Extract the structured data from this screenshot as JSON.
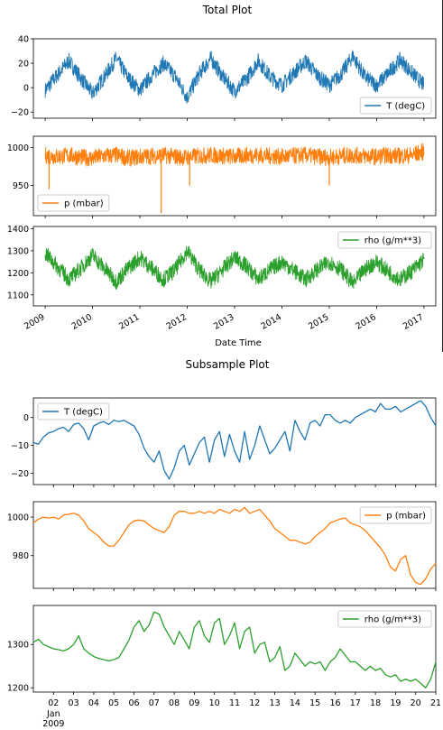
{
  "figures": {
    "total_title": "Total Plot",
    "subsample_title": "Subsample Plot",
    "colors": {
      "T": "#1f77b4",
      "p": "#ff7f0e",
      "rho": "#2ca02c"
    }
  },
  "chart_data": [
    {
      "type": "line",
      "figure": "Total Plot",
      "xlabel": "Date Time",
      "x_ticks": [
        "2009",
        "2010",
        "2011",
        "2012",
        "2013",
        "2014",
        "2015",
        "2016",
        "2017"
      ],
      "series": [
        {
          "name": "T (degC)",
          "legend_loc": "bottom-right",
          "ylim": [
            -25,
            40
          ],
          "yticks": [
            -20,
            0,
            20,
            40
          ],
          "x": [
            2009.0,
            2009.25,
            2009.5,
            2009.75,
            2010.0,
            2010.25,
            2010.5,
            2010.75,
            2011.0,
            2011.25,
            2011.5,
            2011.75,
            2012.0,
            2012.25,
            2012.5,
            2012.75,
            2013.0,
            2013.25,
            2013.5,
            2013.75,
            2014.0,
            2014.25,
            2014.5,
            2014.75,
            2015.0,
            2015.25,
            2015.5,
            2015.75,
            2016.0,
            2016.25,
            2016.5,
            2016.75,
            2017.0
          ],
          "y": [
            -2,
            10,
            22,
            8,
            -5,
            9,
            24,
            8,
            -2,
            10,
            20,
            9,
            -8,
            11,
            24,
            9,
            -3,
            7,
            22,
            9,
            2,
            12,
            22,
            10,
            2,
            11,
            26,
            9,
            2,
            12,
            23,
            12,
            2
          ],
          "y_min": -22,
          "y_max": 36
        },
        {
          "name": "p (mbar)",
          "legend_loc": "bottom-left",
          "ylim": [
            910,
            1015
          ],
          "yticks": [
            950,
            1000
          ],
          "x": [
            2009.0,
            2009.25,
            2009.5,
            2009.75,
            2010.0,
            2010.25,
            2010.5,
            2010.75,
            2011.0,
            2011.25,
            2011.5,
            2011.75,
            2012.0,
            2012.25,
            2012.5,
            2012.75,
            2013.0,
            2013.25,
            2013.5,
            2013.75,
            2014.0,
            2014.25,
            2014.5,
            2014.75,
            2015.0,
            2015.25,
            2015.5,
            2015.75,
            2016.0,
            2016.25,
            2016.5,
            2016.75,
            2017.0
          ],
          "y": [
            990,
            988,
            990,
            987,
            986,
            989,
            990,
            986,
            988,
            989,
            990,
            988,
            987,
            989,
            990,
            989,
            988,
            990,
            990,
            989,
            988,
            989,
            990,
            988,
            987,
            989,
            990,
            989,
            988,
            990,
            989,
            990,
            995
          ],
          "y_min": 913,
          "y_max": 1015
        },
        {
          "name": "rho (g/m**3)",
          "legend_loc": "top-right",
          "ylim": [
            1050,
            1410
          ],
          "yticks": [
            1100,
            1200,
            1300,
            1400
          ],
          "x": [
            2009.0,
            2009.25,
            2009.5,
            2009.75,
            2010.0,
            2010.25,
            2010.5,
            2010.75,
            2011.0,
            2011.25,
            2011.5,
            2011.75,
            2012.0,
            2012.25,
            2012.5,
            2012.75,
            2013.0,
            2013.25,
            2013.5,
            2013.75,
            2014.0,
            2014.25,
            2014.5,
            2014.75,
            2015.0,
            2015.25,
            2015.5,
            2015.75,
            2016.0,
            2016.25,
            2016.5,
            2016.75,
            2017.0
          ],
          "y": [
            1290,
            1230,
            1170,
            1220,
            1280,
            1220,
            1160,
            1220,
            1270,
            1220,
            1170,
            1215,
            1300,
            1215,
            1160,
            1215,
            1270,
            1230,
            1170,
            1215,
            1250,
            1210,
            1170,
            1215,
            1250,
            1215,
            1150,
            1215,
            1250,
            1205,
            1170,
            1210,
            1260
          ],
          "y_min": 1060,
          "y_max": 1395
        }
      ]
    },
    {
      "type": "line",
      "figure": "Subsample Plot",
      "xlabel": "",
      "x_ticks": [
        "02",
        "03",
        "04",
        "05",
        "06",
        "07",
        "08",
        "09",
        "10",
        "11",
        "12",
        "13",
        "14",
        "15",
        "16",
        "17",
        "18",
        "19",
        "20",
        "21"
      ],
      "x_sub_label": "Jan\n2009",
      "series": [
        {
          "name": "T (degC)",
          "legend_loc": "top-left",
          "ylim": [
            -24,
            7
          ],
          "yticks": [
            -20,
            -10,
            0
          ],
          "x": [
            1.0,
            1.25,
            1.5,
            1.75,
            2.0,
            2.25,
            2.5,
            2.75,
            3.0,
            3.25,
            3.5,
            3.75,
            4.0,
            4.25,
            4.5,
            4.75,
            5.0,
            5.25,
            5.5,
            5.75,
            6.0,
            6.25,
            6.5,
            6.75,
            7.0,
            7.25,
            7.5,
            7.75,
            8.0,
            8.25,
            8.5,
            8.75,
            9.0,
            9.25,
            9.5,
            9.75,
            10.0,
            10.25,
            10.5,
            10.75,
            11.0,
            11.25,
            11.5,
            11.75,
            12.0,
            12.25,
            12.5,
            12.75,
            13.0,
            13.25,
            13.5,
            13.75,
            14.0,
            14.25,
            14.5,
            14.75,
            15.0,
            15.25,
            15.5,
            15.75,
            16.0,
            16.25,
            16.5,
            16.75,
            17.0,
            17.25,
            17.5,
            17.75,
            18.0,
            18.25,
            18.5,
            18.75,
            19.0,
            19.25,
            19.5,
            19.75,
            20.0,
            20.25,
            20.5,
            20.75,
            21.0
          ],
          "y": [
            -9,
            -9.5,
            -7,
            -5.5,
            -5,
            -4,
            -3.5,
            -5,
            -2.5,
            -2,
            -4,
            -8,
            -3,
            -2,
            -1.5,
            -2.5,
            -1,
            -1.5,
            -1,
            -2,
            -3,
            -6,
            -11,
            -14,
            -16,
            -12,
            -19,
            -22,
            -18,
            -12,
            -10,
            -17,
            -13,
            -9,
            -7,
            -16,
            -8,
            -5,
            -14,
            -6,
            -12,
            -16,
            -5,
            -15,
            -10,
            -3,
            -8,
            -13,
            -11,
            -8,
            -5,
            -12,
            -1,
            -5,
            -8,
            -2,
            -1,
            -3,
            1,
            1,
            -1,
            -2,
            -1,
            -2,
            0,
            1,
            2,
            3,
            2,
            5,
            3,
            3,
            4,
            2,
            3,
            4,
            5,
            6,
            4,
            0,
            -3
          ],
          "y_min": -22,
          "y_max": 6
        },
        {
          "name": "p (mbar)",
          "legend_loc": "top-right",
          "ylim": [
            963,
            1008
          ],
          "yticks": [
            980,
            1000
          ],
          "x": [
            1.0,
            1.25,
            1.5,
            1.75,
            2.0,
            2.25,
            2.5,
            2.75,
            3.0,
            3.25,
            3.5,
            3.75,
            4.0,
            4.25,
            4.5,
            4.75,
            5.0,
            5.25,
            5.5,
            5.75,
            6.0,
            6.25,
            6.5,
            6.75,
            7.0,
            7.25,
            7.5,
            7.75,
            8.0,
            8.25,
            8.5,
            8.75,
            9.0,
            9.25,
            9.5,
            9.75,
            10.0,
            10.25,
            10.5,
            10.75,
            11.0,
            11.25,
            11.5,
            11.75,
            12.0,
            12.25,
            12.5,
            12.75,
            13.0,
            13.25,
            13.5,
            13.75,
            14.0,
            14.25,
            14.5,
            14.75,
            15.0,
            15.25,
            15.5,
            15.75,
            16.0,
            16.25,
            16.5,
            16.75,
            17.0,
            17.25,
            17.5,
            17.75,
            18.0,
            18.25,
            18.5,
            18.75,
            19.0,
            19.25,
            19.5,
            19.75,
            20.0,
            20.25,
            20.5,
            20.75,
            21.0
          ],
          "y": [
            997,
            999,
            1000,
            999.5,
            1000,
            999,
            1001,
            1001.5,
            1002,
            1001,
            998,
            994,
            992,
            990,
            987,
            985,
            985,
            988,
            992,
            996,
            998,
            998.5,
            998,
            996,
            994,
            993,
            992,
            995,
            1001,
            1003,
            1003,
            1002,
            1002,
            1003,
            1002,
            1003,
            1002,
            1004,
            1003,
            1002,
            1004,
            1003,
            1005,
            1002,
            1003,
            1004,
            1001,
            998,
            994,
            992,
            990,
            988,
            988,
            987,
            986,
            987,
            990,
            992,
            994,
            997,
            998,
            999,
            999.5,
            997,
            996,
            995,
            993,
            990,
            987,
            984,
            980,
            974,
            972,
            978,
            980,
            970,
            966,
            965,
            968,
            973,
            976
          ],
          "y_min": 965,
          "y_max": 1005
        },
        {
          "name": "rho (g/m**3)",
          "legend_loc": "top-right",
          "ylim": [
            1190,
            1390
          ],
          "yticks": [
            1200,
            1300
          ],
          "x": [
            1.0,
            1.25,
            1.5,
            1.75,
            2.0,
            2.25,
            2.5,
            2.75,
            3.0,
            3.25,
            3.5,
            3.75,
            4.0,
            4.25,
            4.5,
            4.75,
            5.0,
            5.25,
            5.5,
            5.75,
            6.0,
            6.25,
            6.5,
            6.75,
            7.0,
            7.25,
            7.5,
            7.75,
            8.0,
            8.25,
            8.5,
            8.75,
            9.0,
            9.25,
            9.5,
            9.75,
            10.0,
            10.25,
            10.5,
            10.75,
            11.0,
            11.25,
            11.5,
            11.75,
            12.0,
            12.25,
            12.5,
            12.75,
            13.0,
            13.25,
            13.5,
            13.75,
            14.0,
            14.25,
            14.5,
            14.75,
            15.0,
            15.25,
            15.5,
            15.75,
            16.0,
            16.25,
            16.5,
            16.75,
            17.0,
            17.25,
            17.5,
            17.75,
            18.0,
            18.25,
            18.5,
            18.75,
            19.0,
            19.25,
            19.5,
            19.75,
            20.0,
            20.25,
            20.5,
            20.75,
            21.0
          ],
          "y": [
            1305,
            1312,
            1300,
            1295,
            1290,
            1288,
            1285,
            1290,
            1300,
            1320,
            1290,
            1280,
            1272,
            1268,
            1265,
            1262,
            1265,
            1270,
            1290,
            1310,
            1340,
            1355,
            1330,
            1345,
            1375,
            1370,
            1340,
            1320,
            1300,
            1330,
            1310,
            1290,
            1340,
            1355,
            1320,
            1305,
            1350,
            1360,
            1300,
            1320,
            1350,
            1290,
            1330,
            1340,
            1280,
            1300,
            1305,
            1260,
            1270,
            1295,
            1240,
            1250,
            1280,
            1265,
            1250,
            1260,
            1255,
            1260,
            1240,
            1260,
            1270,
            1290,
            1275,
            1260,
            1260,
            1250,
            1240,
            1250,
            1240,
            1245,
            1230,
            1225,
            1230,
            1215,
            1220,
            1215,
            1220,
            1210,
            1200,
            1220,
            1260
          ],
          "y_min": 1200,
          "y_max": 1378
        }
      ]
    }
  ]
}
